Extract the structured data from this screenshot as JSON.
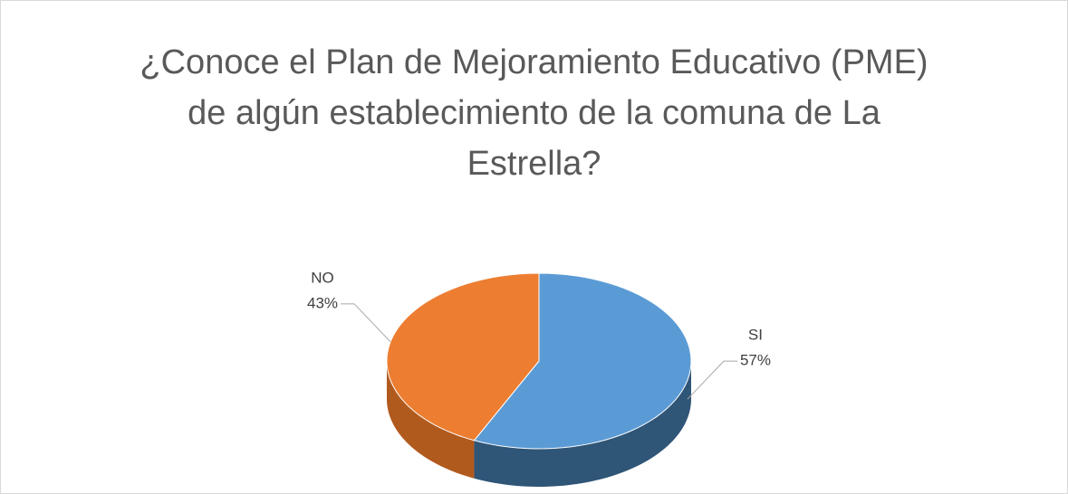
{
  "chart_data": {
    "type": "pie3d",
    "title": "¿Conoce el Plan de Mejoramiento Educativo (PME) de algún establecimiento de la comuna de La Estrella?",
    "categories": [
      "SI",
      "NO"
    ],
    "values": [
      57,
      43
    ],
    "value_labels": [
      "57%",
      "43%"
    ],
    "colors": [
      "#5b9bd5",
      "#ed7d31"
    ],
    "side_colors": [
      "#2f5577",
      "#b15a1e"
    ]
  }
}
